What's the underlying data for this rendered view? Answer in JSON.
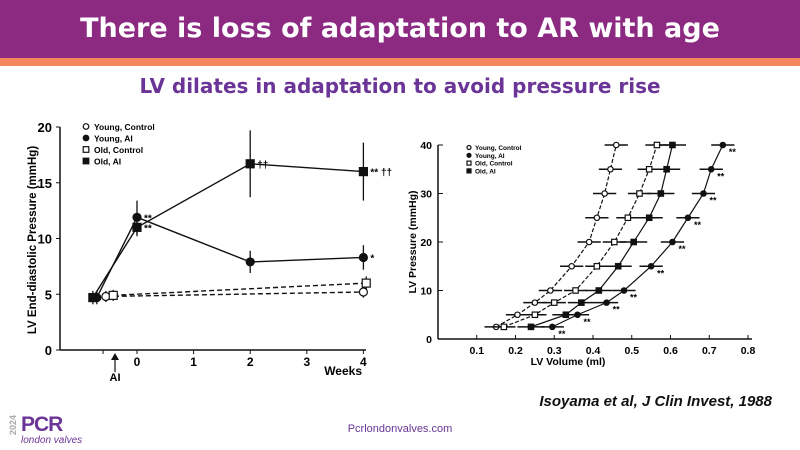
{
  "header": {
    "title": "There is loss of adaptation to AR with age",
    "subtitle": "LV dilates in adaptation to avoid pressure rise"
  },
  "citation": "Isoyama et al, J Clin Invest, 1988",
  "footer": {
    "website": "Pcrlondonvalves.com",
    "logo_year": "2024",
    "logo_main": "PCR",
    "logo_sub": "london valves"
  },
  "colors": {
    "header": "#8c2a82",
    "stripe": "#f5875f",
    "subtitle": "#6a3597"
  },
  "chart_data": [
    {
      "type": "line",
      "xlabel": "Weeks",
      "ylabel": "LV End-diastolic Pressure (mmHg)",
      "ylim": [
        0,
        20
      ],
      "xlim": [
        -1,
        4
      ],
      "xticks": [
        "0",
        "1",
        "2",
        "3",
        "4"
      ],
      "yticks": [
        "0",
        "5",
        "10",
        "15",
        "20"
      ],
      "arrow_label": "AI",
      "legend_position": "top-left",
      "series": [
        {
          "name": "Young, Control",
          "marker": "open-circle",
          "dash": true,
          "x": [
            -0.55,
            4
          ],
          "y": [
            4.8,
            5.2
          ],
          "err": [
            0.5,
            0.5
          ]
        },
        {
          "name": "Young, AI",
          "marker": "filled-circle",
          "dash": false,
          "x": [
            -0.71,
            0,
            2,
            4
          ],
          "y": [
            4.7,
            11.9,
            7.9,
            8.3
          ],
          "err": [
            0.6,
            1.5,
            1.0,
            1.1
          ],
          "annotations": [
            "",
            "**",
            "",
            "*"
          ]
        },
        {
          "name": "Old, Control",
          "marker": "open-square",
          "dash": true,
          "x": [
            -0.42,
            4.05
          ],
          "y": [
            4.9,
            6.0
          ],
          "err": [
            0.5,
            0.6
          ]
        },
        {
          "name": "Old, AI",
          "marker": "filled-square",
          "dash": false,
          "x": [
            -0.78,
            0,
            2,
            4
          ],
          "y": [
            4.7,
            11.0,
            16.7,
            16.0
          ],
          "err": [
            0.6,
            0.8,
            3.0,
            2.6
          ],
          "annotations": [
            "",
            "**",
            "††",
            "** ††"
          ]
        }
      ]
    },
    {
      "type": "line",
      "xlabel": "LV Volume (ml)",
      "ylabel": "LV Pressure (mmHg)",
      "ylim": [
        0,
        40
      ],
      "xlim": [
        0,
        0.8
      ],
      "xticks": [
        "0.1",
        "0.2",
        "0.3",
        "0.4",
        "0.5",
        "0.6",
        "0.7",
        "0.8"
      ],
      "yticks": [
        "0",
        "10",
        "20",
        "30",
        "40"
      ],
      "legend_position": "top-left",
      "series": [
        {
          "name": "Young, Control",
          "marker": "open-circle",
          "dash": true,
          "x": [
            0.15,
            0.205,
            0.25,
            0.29,
            0.345,
            0.39,
            0.41,
            0.43,
            0.445,
            0.46
          ],
          "y": [
            2.5,
            5,
            7.5,
            10,
            15,
            20,
            25,
            30,
            35,
            40
          ],
          "err": 0.03
        },
        {
          "name": "Young, AI",
          "marker": "filled-circle",
          "dash": false,
          "x": [
            0.295,
            0.36,
            0.435,
            0.48,
            0.55,
            0.605,
            0.645,
            0.685,
            0.705,
            0.735
          ],
          "y": [
            2.5,
            5,
            7.5,
            10,
            15,
            20,
            25,
            30,
            35,
            40
          ],
          "err": 0.03,
          "annotation": "**"
        },
        {
          "name": "Old, Control",
          "marker": "open-square",
          "dash": true,
          "x": [
            0.17,
            0.25,
            0.3,
            0.355,
            0.41,
            0.455,
            0.49,
            0.52,
            0.545,
            0.565
          ],
          "y": [
            2.5,
            5,
            7.5,
            10,
            15,
            20,
            25,
            30,
            35,
            40
          ],
          "err": 0.03
        },
        {
          "name": "Old, AI",
          "marker": "filled-square",
          "dash": false,
          "x": [
            0.24,
            0.33,
            0.37,
            0.415,
            0.465,
            0.505,
            0.545,
            0.575,
            0.59,
            0.605
          ],
          "y": [
            2.5,
            5,
            7.5,
            10,
            15,
            20,
            25,
            30,
            35,
            40
          ],
          "err": 0.035
        }
      ]
    }
  ]
}
